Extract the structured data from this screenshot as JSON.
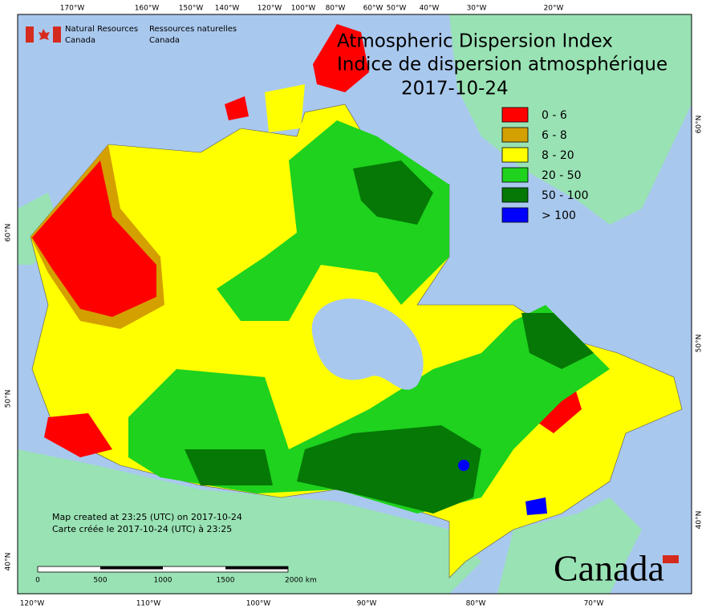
{
  "header": {
    "org_en": [
      "Natural Resources",
      "Canada"
    ],
    "org_fr": [
      "Ressources naturelles",
      "Canada"
    ]
  },
  "title": [
    "Atmospheric Dispersion Index",
    "Indice de dispersion atmosphérique"
  ],
  "date": "2017-10-24",
  "legend": [
    {
      "label": "0 - 6",
      "color": "#ff0000"
    },
    {
      "label": "6 - 8",
      "color": "#d4a000"
    },
    {
      "label": "8 - 20",
      "color": "#ffff00"
    },
    {
      "label": "20 - 50",
      "color": "#1ed21e"
    },
    {
      "label": "50 - 100",
      "color": "#057805"
    },
    {
      "label": "> 100",
      "color": "#0000ff"
    }
  ],
  "graticule": {
    "top": [
      "170°W",
      "160°W",
      "150°W",
      "140°W",
      "120°W",
      "100°W",
      "80°W",
      "60°W",
      "50°W",
      "40°W",
      "30°W",
      "20°W"
    ],
    "bottom": [
      "120°W",
      "110°W",
      "100°W",
      "90°W",
      "80°W",
      "70°W"
    ],
    "left": [
      "60°N",
      "50°N",
      "40°N"
    ],
    "right": [
      "60°N",
      "50°N",
      "40°N"
    ]
  },
  "notes": [
    "Map created at 23:25 (UTC) on 2017-10-24",
    "Carte créée le 2017-10-24 (UTC) à 23:25"
  ],
  "scale_bar": [
    "0",
    "500",
    "1000",
    "1500",
    "2000 km"
  ],
  "wordmark": "Canada"
}
